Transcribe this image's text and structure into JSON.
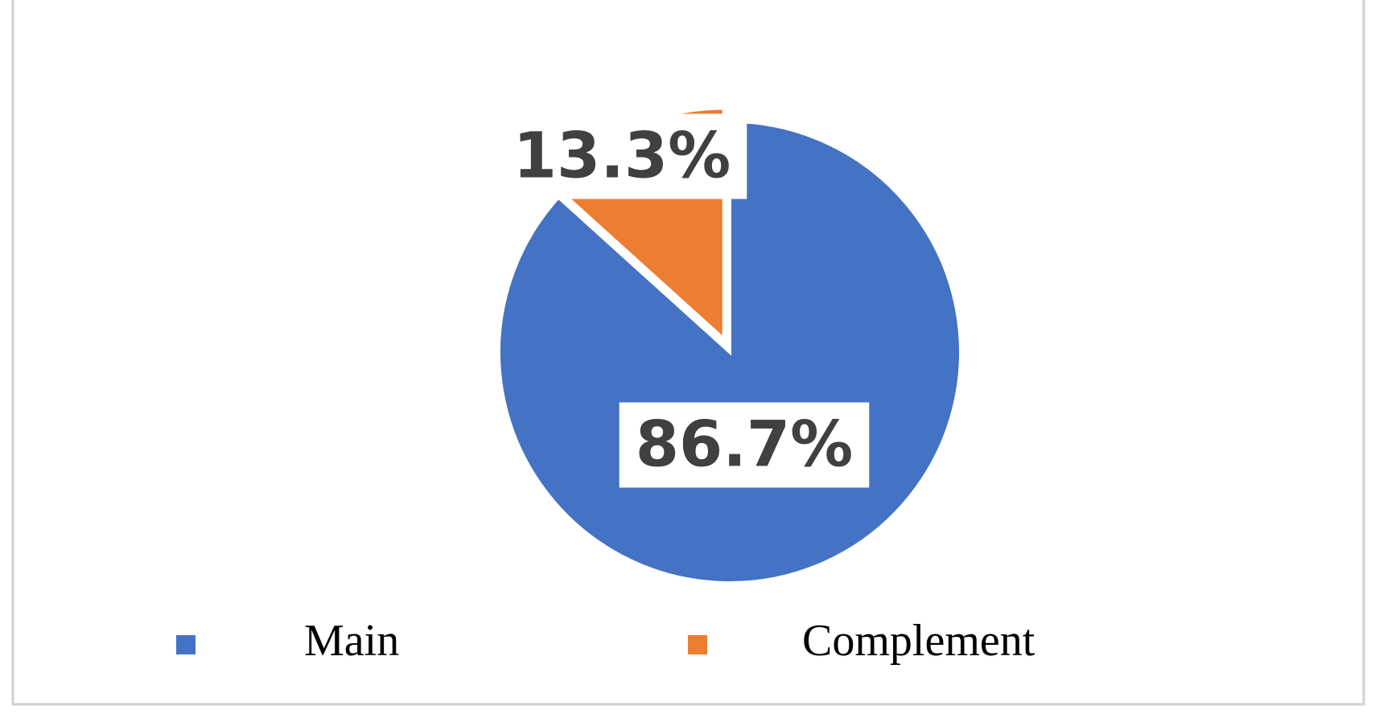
{
  "chart_data": {
    "type": "pie",
    "categories": [
      "Main",
      "Complement"
    ],
    "values": [
      86.7,
      13.3
    ],
    "value_labels": [
      "86.7%",
      "13.3%"
    ],
    "colors": [
      "#4472c4",
      "#ed7d31"
    ],
    "exploded": [
      false,
      true
    ],
    "legend": "bottom"
  }
}
